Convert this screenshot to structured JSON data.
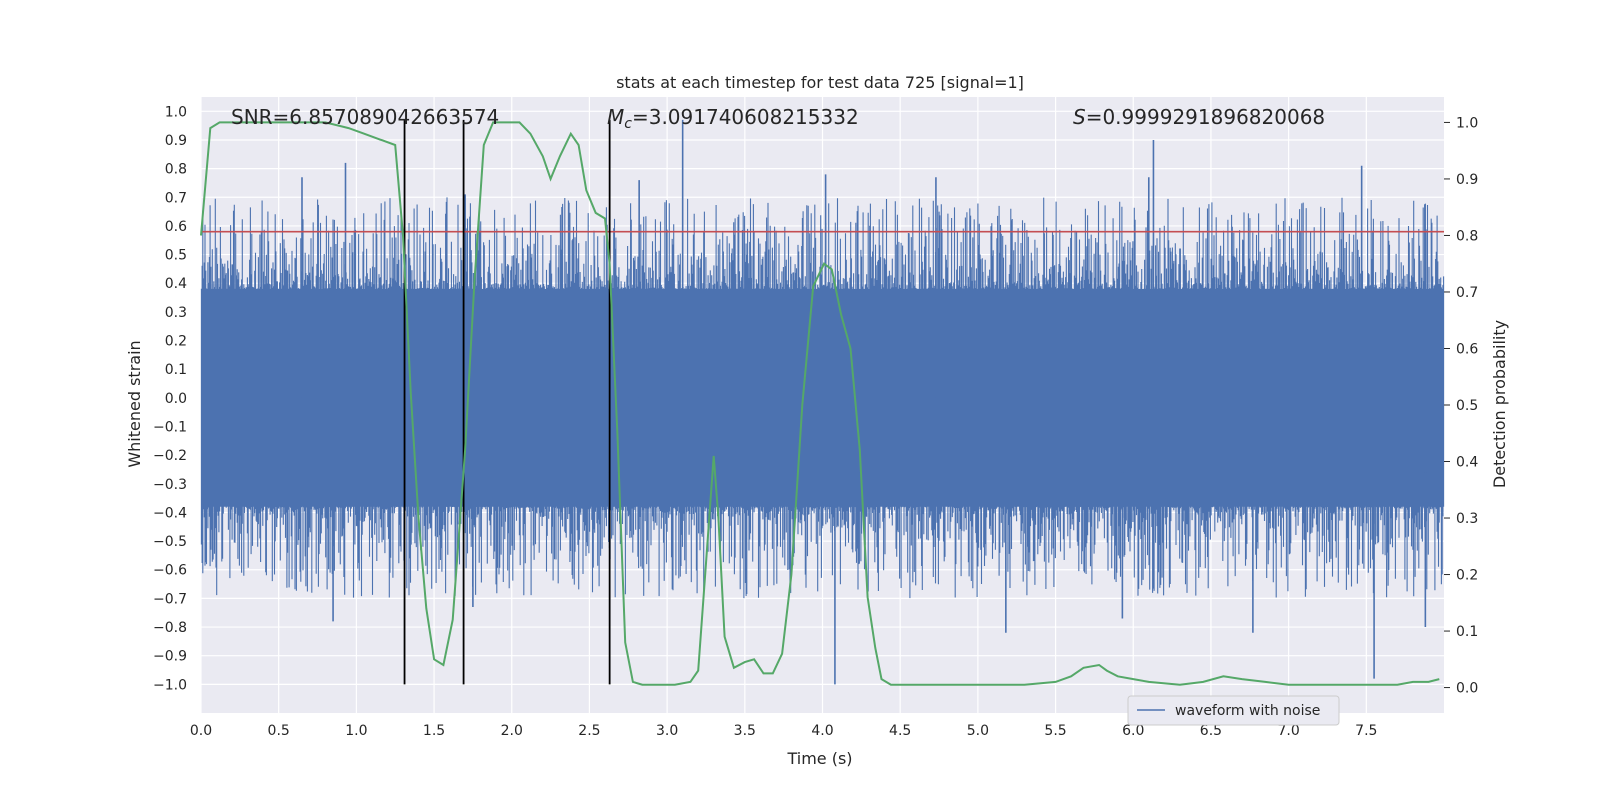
{
  "chart_data": {
    "type": "line",
    "title": "stats at each timestep for test data 725 [signal=1]",
    "xlabel": "Time (s)",
    "ylabel": "Whitened strain",
    "ylabel_right": "Detection probability",
    "xlim": [
      0.0,
      8.0
    ],
    "ylim": [
      -1.1,
      1.05
    ],
    "ylim_right": [
      -0.045,
      1.045
    ],
    "x_ticks": [
      0.0,
      0.5,
      1.0,
      1.5,
      2.0,
      2.5,
      3.0,
      3.5,
      4.0,
      4.5,
      5.0,
      5.5,
      6.0,
      6.5,
      7.0,
      7.5
    ],
    "x_tick_labels": [
      "0.0",
      "0.5",
      "1.0",
      "1.5",
      "2.0",
      "2.5",
      "3.0",
      "3.5",
      "4.0",
      "4.5",
      "5.0",
      "5.5",
      "6.0",
      "6.5",
      "7.0",
      "7.5"
    ],
    "y_ticks": [
      -1.0,
      -0.9,
      -0.8,
      -0.7,
      -0.6,
      -0.5,
      -0.4,
      -0.3,
      -0.2,
      -0.1,
      0.0,
      0.1,
      0.2,
      0.3,
      0.4,
      0.5,
      0.6,
      0.7,
      0.8,
      0.9,
      1.0
    ],
    "y_tick_labels": [
      "−1.0",
      "−0.9",
      "−0.8",
      "−0.7",
      "−0.6",
      "−0.5",
      "−0.4",
      "−0.3",
      "−0.2",
      "−0.1",
      "0.0",
      "0.1",
      "0.2",
      "0.3",
      "0.4",
      "0.5",
      "0.6",
      "0.7",
      "0.8",
      "0.9",
      "1.0"
    ],
    "y_right_ticks": [
      0.0,
      0.1,
      0.2,
      0.3,
      0.4,
      0.5,
      0.6,
      0.7,
      0.8,
      0.9,
      1.0
    ],
    "y_right_tick_labels": [
      "0.0",
      "0.1",
      "0.2",
      "0.3",
      "0.4",
      "0.5",
      "0.6",
      "0.7",
      "0.8",
      "0.9",
      "1.0"
    ],
    "annotations": {
      "snr": "SNR=6.857089042663574",
      "mc_symbol": "M",
      "mc_sub": "c",
      "mc_value": "=3.091740608215332",
      "s_symbol": "S",
      "s_value": "=0.9999291896820068"
    },
    "threshold": {
      "value": 0.58,
      "color": "#c44e52"
    },
    "vertical_lines": [
      1.31,
      1.69,
      2.63
    ],
    "series": [
      {
        "name": "waveform with noise",
        "color": "#4c72b0",
        "description": "noisy whitened strain, dense noise band",
        "band_low": -0.38,
        "band_high": 0.38,
        "spikes": [
          {
            "x": 0.85,
            "y": -0.78
          },
          {
            "x": 0.93,
            "y": 0.82
          },
          {
            "x": 0.65,
            "y": 0.77
          },
          {
            "x": 1.7,
            "y": 0.71
          },
          {
            "x": 1.75,
            "y": -0.73
          },
          {
            "x": 3.1,
            "y": 0.97
          },
          {
            "x": 4.08,
            "y": -1.0
          },
          {
            "x": 4.02,
            "y": 0.78
          },
          {
            "x": 5.18,
            "y": -0.82
          },
          {
            "x": 6.13,
            "y": 0.9
          },
          {
            "x": 6.1,
            "y": 0.77
          },
          {
            "x": 7.55,
            "y": -0.98
          },
          {
            "x": 7.47,
            "y": 0.81
          },
          {
            "x": 7.88,
            "y": -0.8
          },
          {
            "x": 6.77,
            "y": -0.82
          },
          {
            "x": 5.93,
            "y": -0.77
          },
          {
            "x": 4.73,
            "y": 0.77
          },
          {
            "x": 2.82,
            "y": 0.76
          }
        ]
      },
      {
        "name": "detection probability",
        "color": "#55a868",
        "axis": "right",
        "x": [
          0.0,
          0.06,
          0.12,
          0.2,
          0.4,
          0.6,
          0.8,
          0.95,
          1.05,
          1.15,
          1.25,
          1.3,
          1.35,
          1.4,
          1.45,
          1.5,
          1.56,
          1.62,
          1.7,
          1.76,
          1.82,
          1.88,
          1.95,
          2.05,
          2.12,
          2.2,
          2.25,
          2.31,
          2.38,
          2.43,
          2.48,
          2.54,
          2.6,
          2.63,
          2.68,
          2.73,
          2.78,
          2.84,
          2.95,
          3.05,
          3.15,
          3.2,
          3.25,
          3.3,
          3.33,
          3.37,
          3.43,
          3.5,
          3.56,
          3.62,
          3.68,
          3.74,
          3.8,
          3.87,
          3.94,
          4.01,
          4.06,
          4.12,
          4.18,
          4.24,
          4.29,
          4.34,
          4.38,
          4.44,
          4.55,
          4.7,
          4.9,
          5.1,
          5.3,
          5.5,
          5.6,
          5.68,
          5.78,
          5.83,
          5.9,
          6.0,
          6.1,
          6.3,
          6.45,
          6.58,
          6.7,
          6.85,
          7.0,
          7.2,
          7.4,
          7.6,
          7.7,
          7.8,
          7.9,
          7.97
        ],
        "y": [
          0.8,
          0.99,
          1.0,
          1.0,
          1.0,
          1.0,
          1.0,
          0.99,
          0.98,
          0.97,
          0.96,
          0.8,
          0.52,
          0.3,
          0.14,
          0.05,
          0.04,
          0.12,
          0.42,
          0.72,
          0.96,
          1.0,
          1.0,
          1.0,
          0.98,
          0.94,
          0.9,
          0.94,
          0.98,
          0.96,
          0.88,
          0.84,
          0.83,
          0.75,
          0.45,
          0.08,
          0.01,
          0.005,
          0.005,
          0.005,
          0.01,
          0.03,
          0.22,
          0.41,
          0.3,
          0.09,
          0.035,
          0.045,
          0.05,
          0.025,
          0.025,
          0.06,
          0.2,
          0.5,
          0.71,
          0.75,
          0.74,
          0.66,
          0.6,
          0.42,
          0.16,
          0.07,
          0.015,
          0.005,
          0.005,
          0.005,
          0.005,
          0.005,
          0.005,
          0.01,
          0.02,
          0.035,
          0.04,
          0.03,
          0.02,
          0.015,
          0.01,
          0.005,
          0.01,
          0.02,
          0.015,
          0.01,
          0.005,
          0.005,
          0.005,
          0.005,
          0.005,
          0.01,
          0.01,
          0.015
        ]
      }
    ]
  },
  "legend": {
    "label": "waveform with noise"
  }
}
